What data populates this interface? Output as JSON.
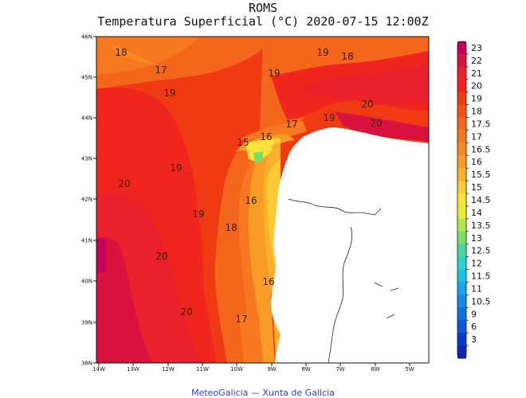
{
  "header": {
    "model": "ROMS",
    "title": "Temperatura Superficial (°C) 2020-07-15 12:00Z"
  },
  "footer": {
    "credit": "MeteoGalicia — Xunta de Galicia"
  },
  "map": {
    "lat_ticks": [
      "46N",
      "45N",
      "44N",
      "43N",
      "42N",
      "41N",
      "40N",
      "39N",
      "38N"
    ],
    "lon_ticks": [
      "14W",
      "13W",
      "12W",
      "11W",
      "10W",
      "9W",
      "8W",
      "7W",
      "6W",
      "5W"
    ],
    "contour_labels": [
      "18",
      "17",
      "19",
      "18",
      "19",
      "19",
      "20",
      "19",
      "20",
      "17",
      "16",
      "15",
      "19",
      "20",
      "16",
      "19",
      "18",
      "20",
      "16",
      "20",
      "17"
    ]
  },
  "colorbar": {
    "labels": [
      "23",
      "22",
      "21",
      "20",
      "19",
      "18",
      "17.5",
      "17",
      "16.5",
      "16",
      "15.5",
      "15",
      "14.5",
      "14",
      "13.5",
      "13",
      "12.5",
      "12",
      "11.5",
      "11",
      "10.5",
      "9",
      "6",
      "3"
    ],
    "colors": [
      "#c3005e",
      "#d9123f",
      "#e8212c",
      "#f0251e",
      "#f03a14",
      "#f25418",
      "#f4661c",
      "#f67820",
      "#f88a22",
      "#f99c26",
      "#fbb02c",
      "#fcc834",
      "#fde23c",
      "#e7ec3a",
      "#b0e84a",
      "#7ade62",
      "#4ad6a0",
      "#27d2cf",
      "#1ac2ea",
      "#13a6ec",
      "#118cea",
      "#0f72e6",
      "#0c56da",
      "#0a3ccb",
      "#0a26b4"
    ]
  }
}
